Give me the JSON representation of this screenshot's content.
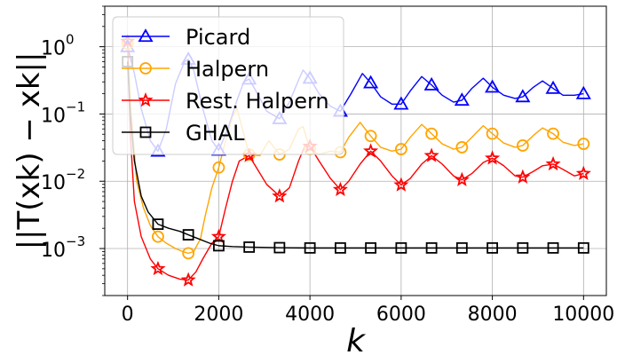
{
  "chart_data": {
    "type": "line",
    "title": "",
    "xlabel": "k",
    "ylabel": "||T(xk) − xk||",
    "yscale": "log",
    "xlim": [
      -500,
      10500
    ],
    "ylim": [
      0.0002,
      4
    ],
    "grid": true,
    "legend_position": "top-left",
    "x_ticks": [
      0,
      2000,
      4000,
      6000,
      8000,
      10000
    ],
    "x_tick_labels": [
      "0",
      "2000",
      "4000",
      "6000",
      "8000",
      "10000"
    ],
    "y_ticks": [
      0.001,
      0.01,
      0.1,
      1
    ],
    "y_tick_labels": [
      {
        "base": "10",
        "exp": "−3"
      },
      {
        "base": "10",
        "exp": "−2"
      },
      {
        "base": "10",
        "exp": "−1"
      },
      {
        "base": "10",
        "exp": "0"
      }
    ],
    "series": [
      {
        "name": "Picard",
        "color": "#0000ff",
        "marker": "triangle",
        "marker_x": [
          0,
          667,
          1333,
          2000,
          2667,
          3333,
          4000,
          4667,
          5333,
          6000,
          6667,
          7333,
          8000,
          8667,
          9333,
          10000
        ],
        "marker_y": [
          1.0,
          0.028,
          0.65,
          0.029,
          0.33,
          0.085,
          0.34,
          0.11,
          0.29,
          0.14,
          0.27,
          0.16,
          0.25,
          0.18,
          0.24,
          0.2
        ],
        "curve": [
          [
            0,
            1.0
          ],
          [
            150,
            0.4
          ],
          [
            300,
            0.12
          ],
          [
            500,
            0.04
          ],
          [
            667,
            0.028
          ],
          [
            850,
            0.06
          ],
          [
            1050,
            0.28
          ],
          [
            1250,
            0.6
          ],
          [
            1333,
            0.65
          ],
          [
            1450,
            0.45
          ],
          [
            1650,
            0.12
          ],
          [
            1850,
            0.04
          ],
          [
            2000,
            0.029
          ],
          [
            2200,
            0.06
          ],
          [
            2400,
            0.16
          ],
          [
            2550,
            0.3
          ],
          [
            2667,
            0.33
          ],
          [
            2850,
            0.2
          ],
          [
            3050,
            0.11
          ],
          [
            3333,
            0.085
          ],
          [
            3550,
            0.15
          ],
          [
            3750,
            0.32
          ],
          [
            3850,
            0.45
          ],
          [
            4000,
            0.34
          ],
          [
            4200,
            0.2
          ],
          [
            4450,
            0.13
          ],
          [
            4667,
            0.11
          ],
          [
            4900,
            0.2
          ],
          [
            5150,
            0.4
          ],
          [
            5333,
            0.29
          ],
          [
            5550,
            0.18
          ],
          [
            5800,
            0.14
          ],
          [
            6000,
            0.14
          ],
          [
            6200,
            0.22
          ],
          [
            6450,
            0.36
          ],
          [
            6667,
            0.27
          ],
          [
            6900,
            0.19
          ],
          [
            7150,
            0.15
          ],
          [
            7333,
            0.16
          ],
          [
            7550,
            0.24
          ],
          [
            7800,
            0.34
          ],
          [
            8000,
            0.25
          ],
          [
            8250,
            0.19
          ],
          [
            8500,
            0.17
          ],
          [
            8667,
            0.18
          ],
          [
            8900,
            0.25
          ],
          [
            9100,
            0.31
          ],
          [
            9333,
            0.24
          ],
          [
            9550,
            0.19
          ],
          [
            9800,
            0.19
          ],
          [
            10000,
            0.2
          ]
        ]
      },
      {
        "name": "Halpern",
        "color": "#ffa500",
        "marker": "circle",
        "marker_x": [
          0,
          667,
          1333,
          2000,
          2667,
          3333,
          4000,
          4667,
          5333,
          6000,
          6667,
          7333,
          8000,
          8667,
          9333,
          10000
        ],
        "marker_y": [
          1.1,
          0.0015,
          0.00085,
          0.016,
          0.025,
          0.025,
          0.03,
          0.027,
          0.047,
          0.03,
          0.051,
          0.032,
          0.051,
          0.034,
          0.051,
          0.036
        ],
        "curve": [
          [
            0,
            1.1
          ],
          [
            80,
            0.1
          ],
          [
            200,
            0.01
          ],
          [
            350,
            0.004
          ],
          [
            500,
            0.0022
          ],
          [
            667,
            0.0015
          ],
          [
            850,
            0.0012
          ],
          [
            1050,
            0.001
          ],
          [
            1250,
            0.00088
          ],
          [
            1333,
            0.00085
          ],
          [
            1450,
            0.0009
          ],
          [
            1600,
            0.0014
          ],
          [
            1700,
            0.003
          ],
          [
            1850,
            0.008
          ],
          [
            2000,
            0.016
          ],
          [
            2150,
            0.04
          ],
          [
            2300,
            0.09
          ],
          [
            2400,
            0.12
          ],
          [
            2550,
            0.05
          ],
          [
            2667,
            0.025
          ],
          [
            2900,
            0.024
          ],
          [
            3100,
            0.04
          ],
          [
            3333,
            0.025
          ],
          [
            3550,
            0.03
          ],
          [
            3750,
            0.06
          ],
          [
            3850,
            0.065
          ],
          [
            4000,
            0.03
          ],
          [
            4200,
            0.025
          ],
          [
            4450,
            0.028
          ],
          [
            4667,
            0.027
          ],
          [
            4850,
            0.045
          ],
          [
            5100,
            0.075
          ],
          [
            5333,
            0.047
          ],
          [
            5550,
            0.032
          ],
          [
            5800,
            0.028
          ],
          [
            6000,
            0.03
          ],
          [
            6200,
            0.045
          ],
          [
            6450,
            0.07
          ],
          [
            6667,
            0.051
          ],
          [
            6900,
            0.036
          ],
          [
            7150,
            0.03
          ],
          [
            7333,
            0.032
          ],
          [
            7550,
            0.045
          ],
          [
            7800,
            0.067
          ],
          [
            8000,
            0.051
          ],
          [
            8250,
            0.037
          ],
          [
            8500,
            0.032
          ],
          [
            8667,
            0.034
          ],
          [
            8900,
            0.048
          ],
          [
            9100,
            0.062
          ],
          [
            9333,
            0.051
          ],
          [
            9550,
            0.038
          ],
          [
            9800,
            0.034
          ],
          [
            10000,
            0.036
          ]
        ]
      },
      {
        "name": "Rest. Halpern",
        "color": "#ff0000",
        "marker": "star",
        "marker_x": [
          0,
          667,
          1333,
          2000,
          2667,
          3333,
          4000,
          4667,
          5333,
          6000,
          6667,
          7333,
          8000,
          8667,
          9333,
          10000
        ],
        "marker_y": [
          1.2,
          0.0005,
          0.00034,
          0.0015,
          0.024,
          0.006,
          0.033,
          0.0075,
          0.028,
          0.0088,
          0.024,
          0.0105,
          0.022,
          0.0115,
          0.018,
          0.013
        ],
        "curve": [
          [
            0,
            1.2
          ],
          [
            60,
            0.05
          ],
          [
            150,
            0.005
          ],
          [
            300,
            0.0015
          ],
          [
            500,
            0.0007
          ],
          [
            667,
            0.0005
          ],
          [
            900,
            0.0004
          ],
          [
            1150,
            0.00035
          ],
          [
            1333,
            0.00034
          ],
          [
            1500,
            0.00045
          ],
          [
            1650,
            0.0007
          ],
          [
            1850,
            0.0012
          ],
          [
            2000,
            0.0015
          ],
          [
            2150,
            0.004
          ],
          [
            2300,
            0.01
          ],
          [
            2450,
            0.02
          ],
          [
            2667,
            0.024
          ],
          [
            2850,
            0.015
          ],
          [
            3050,
            0.009
          ],
          [
            3333,
            0.006
          ],
          [
            3550,
            0.008
          ],
          [
            3750,
            0.02
          ],
          [
            3900,
            0.035
          ],
          [
            4000,
            0.033
          ],
          [
            4200,
            0.02
          ],
          [
            4450,
            0.011
          ],
          [
            4667,
            0.0075
          ],
          [
            4850,
            0.01
          ],
          [
            5100,
            0.018
          ],
          [
            5333,
            0.028
          ],
          [
            5550,
            0.02
          ],
          [
            5800,
            0.012
          ],
          [
            6000,
            0.0088
          ],
          [
            6200,
            0.011
          ],
          [
            6450,
            0.018
          ],
          [
            6667,
            0.024
          ],
          [
            6900,
            0.018
          ],
          [
            7150,
            0.012
          ],
          [
            7333,
            0.0105
          ],
          [
            7550,
            0.013
          ],
          [
            7800,
            0.019
          ],
          [
            8000,
            0.022
          ],
          [
            8250,
            0.017
          ],
          [
            8500,
            0.012
          ],
          [
            8667,
            0.0115
          ],
          [
            8900,
            0.014
          ],
          [
            9100,
            0.017
          ],
          [
            9333,
            0.018
          ],
          [
            9550,
            0.015
          ],
          [
            9800,
            0.012
          ],
          [
            10000,
            0.013
          ]
        ]
      },
      {
        "name": "GHAL",
        "color": "#000000",
        "marker": "square",
        "marker_x": [
          0,
          667,
          1333,
          2000,
          2667,
          3333,
          4000,
          4667,
          5333,
          6000,
          6667,
          7333,
          8000,
          8667,
          9333,
          10000
        ],
        "marker_y": [
          0.6,
          0.0023,
          0.0016,
          0.0011,
          0.00105,
          0.00103,
          0.00102,
          0.00102,
          0.00102,
          0.00102,
          0.00102,
          0.00102,
          0.00102,
          0.00102,
          0.00102,
          0.00102
        ],
        "curve": [
          [
            0,
            0.6
          ],
          [
            60,
            0.1
          ],
          [
            150,
            0.02
          ],
          [
            300,
            0.006
          ],
          [
            450,
            0.0035
          ],
          [
            667,
            0.0023
          ],
          [
            900,
            0.002
          ],
          [
            1150,
            0.0018
          ],
          [
            1333,
            0.0016
          ],
          [
            1550,
            0.0014
          ],
          [
            1800,
            0.0012
          ],
          [
            2000,
            0.0011
          ],
          [
            2300,
            0.00107
          ],
          [
            2667,
            0.00105
          ],
          [
            3333,
            0.00103
          ],
          [
            4000,
            0.00102
          ],
          [
            10000,
            0.00102
          ]
        ]
      }
    ]
  }
}
